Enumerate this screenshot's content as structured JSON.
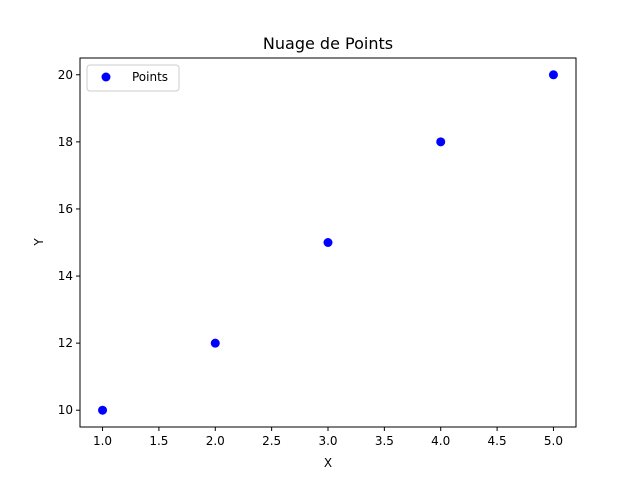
{
  "chart_data": {
    "type": "scatter",
    "title": "Nuage de Points",
    "xlabel": "X",
    "ylabel": "Y",
    "xlim": [
      0.8,
      5.2
    ],
    "ylim": [
      9.5,
      20.5
    ],
    "xticks": [
      1.0,
      1.5,
      2.0,
      2.5,
      3.0,
      3.5,
      4.0,
      4.5,
      5.0
    ],
    "xtick_labels": [
      "1.0",
      "1.5",
      "2.0",
      "2.5",
      "3.0",
      "3.5",
      "4.0",
      "4.5",
      "5.0"
    ],
    "yticks": [
      10,
      12,
      14,
      16,
      18,
      20
    ],
    "ytick_labels": [
      "10",
      "12",
      "14",
      "16",
      "18",
      "20"
    ],
    "grid": false,
    "legend_position": "top-left",
    "series": [
      {
        "name": "Points",
        "color": "#0000ff",
        "x": [
          1,
          2,
          3,
          4,
          5
        ],
        "y": [
          10,
          12,
          15,
          18,
          20
        ]
      }
    ]
  }
}
